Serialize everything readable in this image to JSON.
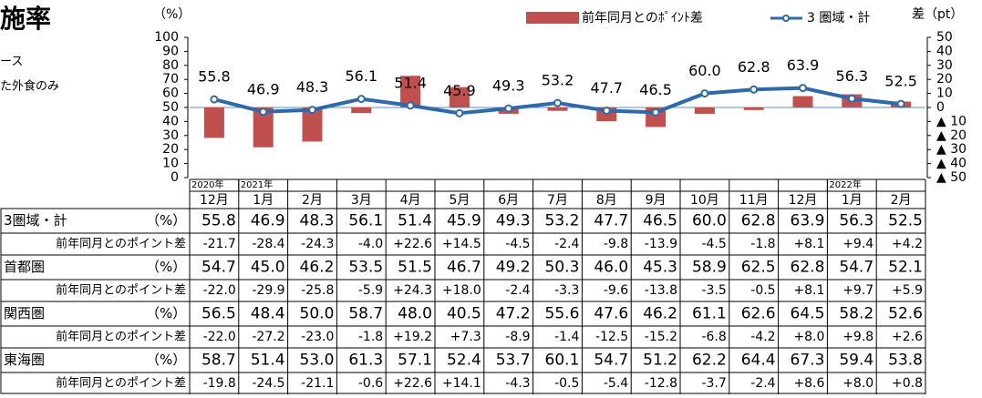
{
  "title": "施率",
  "notes": [
    "ース",
    "た外食のみ"
  ],
  "chart_data": {
    "type": "bar-line",
    "y_unit": "（%）",
    "y2_unit": "差（pt）",
    "categories": [
      "12月",
      "1月",
      "2月",
      "3月",
      "4月",
      "5月",
      "6月",
      "7月",
      "8月",
      "9月",
      "10月",
      "11月",
      "12月",
      "1月",
      "2月"
    ],
    "year_labels": [
      "2020年",
      "2021年",
      null,
      null,
      null,
      null,
      null,
      null,
      null,
      null,
      null,
      null,
      null,
      "2022年",
      null
    ],
    "ylim": [
      0,
      100
    ],
    "yticks": [
      0,
      10,
      20,
      30,
      40,
      50,
      60,
      70,
      80,
      90,
      100
    ],
    "y2lim": [
      -50,
      50
    ],
    "y2ticks": [
      {
        "value": -50,
        "label": "▲ 50"
      },
      {
        "value": -40,
        "label": "▲ 40"
      },
      {
        "value": -30,
        "label": "▲ 30"
      },
      {
        "value": -20,
        "label": "▲ 20"
      },
      {
        "value": -10,
        "label": "▲ 10"
      },
      0,
      10,
      20,
      30,
      40,
      50
    ],
    "series": [
      {
        "name": "前年同月とのﾎﾟｲﾝﾄ差",
        "type": "bar",
        "axis": "y2",
        "color": "#c0504d",
        "values": [
          -21.7,
          -28.4,
          -24.3,
          -4.0,
          22.6,
          14.5,
          -4.5,
          -2.4,
          -9.8,
          -13.9,
          -4.5,
          -1.8,
          8.1,
          9.4,
          4.2
        ]
      },
      {
        "name": "3 圏域・計",
        "type": "line",
        "color": "#2e6aab",
        "values": [
          55.8,
          46.9,
          48.3,
          56.1,
          51.4,
          45.9,
          49.3,
          53.2,
          47.7,
          46.5,
          60.0,
          62.8,
          63.9,
          56.3,
          52.5
        ],
        "value_labels": [
          "55.8",
          "46.9",
          "48.3",
          "56.1",
          "51.4",
          "45.9",
          "49.3",
          "53.2",
          "47.7",
          "46.5",
          "60.0",
          "62.8",
          "63.9",
          "56.3",
          "52.5"
        ]
      }
    ]
  },
  "table": {
    "rows": [
      {
        "label": "3圏域・計",
        "unit": "（%）",
        "cells": [
          "55.8",
          "46.9",
          "48.3",
          "56.1",
          "51.4",
          "45.9",
          "49.3",
          "53.2",
          "47.7",
          "46.5",
          "60.0",
          "62.8",
          "63.9",
          "56.3",
          "52.5"
        ]
      },
      {
        "label": "前年同月とのポイント差",
        "cells": [
          "-21.7",
          "-28.4",
          "-24.3",
          "-4.0",
          "+22.6",
          "+14.5",
          "-4.5",
          "-2.4",
          "-9.8",
          "-13.9",
          "-4.5",
          "-1.8",
          "+8.1",
          "+9.4",
          "+4.2"
        ]
      },
      {
        "label": "首都圏",
        "unit": "（%）",
        "cells": [
          "54.7",
          "45.0",
          "46.2",
          "53.5",
          "51.5",
          "46.7",
          "49.2",
          "50.3",
          "46.0",
          "45.3",
          "58.9",
          "62.5",
          "62.8",
          "54.7",
          "52.1"
        ]
      },
      {
        "label": "前年同月とのポイント差",
        "cells": [
          "-22.0",
          "-29.9",
          "-25.8",
          "-5.9",
          "+24.3",
          "+18.0",
          "-2.4",
          "-3.3",
          "-9.6",
          "-13.8",
          "-3.5",
          "-0.5",
          "+8.1",
          "+9.7",
          "+5.9"
        ]
      },
      {
        "label": "関西圏",
        "unit": "（%）",
        "cells": [
          "56.5",
          "48.4",
          "50.0",
          "58.7",
          "48.0",
          "40.5",
          "47.2",
          "55.6",
          "47.6",
          "46.2",
          "61.1",
          "62.6",
          "64.5",
          "58.2",
          "52.6"
        ]
      },
      {
        "label": "前年同月とのポイント差",
        "cells": [
          "-22.0",
          "-27.2",
          "-23.0",
          "-1.8",
          "+19.2",
          "+7.3",
          "-8.9",
          "-1.4",
          "-12.5",
          "-15.2",
          "-6.8",
          "-4.2",
          "+8.0",
          "+9.8",
          "+2.6"
        ]
      },
      {
        "label": "東海圏",
        "unit": "（%）",
        "cells": [
          "58.7",
          "51.4",
          "53.0",
          "61.3",
          "57.1",
          "52.4",
          "53.7",
          "60.1",
          "54.7",
          "51.2",
          "62.2",
          "64.4",
          "67.3",
          "59.4",
          "53.8"
        ]
      },
      {
        "label": "前年同月とのポイント差",
        "cells": [
          "-19.8",
          "-24.5",
          "-21.1",
          "-0.6",
          "+22.6",
          "+14.1",
          "-4.3",
          "-0.5",
          "-5.4",
          "-12.8",
          "-3.7",
          "-2.4",
          "+8.6",
          "+8.0",
          "+0.8"
        ]
      }
    ]
  }
}
